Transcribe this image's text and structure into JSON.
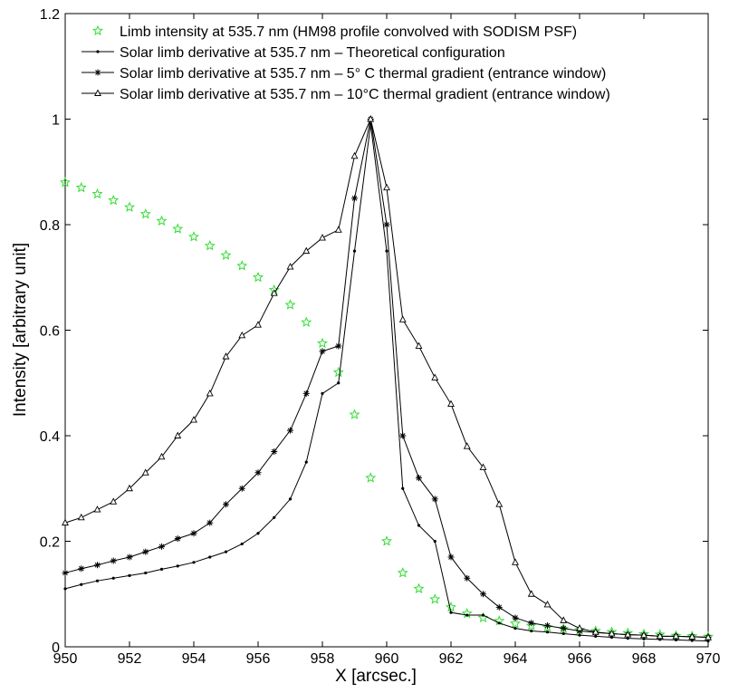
{
  "chart_data": {
    "type": "line",
    "xlabel": "X [arcsec.]",
    "ylabel": "Intensity [arbitrary unit]",
    "x": [
      950,
      950.5,
      951,
      951.5,
      952,
      952.5,
      953,
      953.5,
      954,
      954.5,
      955,
      955.5,
      956,
      956.5,
      957,
      957.5,
      958,
      958.5,
      959,
      959.5,
      960,
      960.5,
      961,
      961.5,
      962,
      962.5,
      963,
      963.5,
      964,
      964.5,
      965,
      965.5,
      966,
      966.5,
      967,
      967.5,
      968,
      968.5,
      969,
      969.5,
      970
    ],
    "xlim": [
      950,
      970
    ],
    "ylim": [
      0,
      1.2
    ],
    "xticks": [
      950,
      952,
      954,
      956,
      958,
      960,
      962,
      964,
      966,
      968,
      970
    ],
    "yticks": [
      0,
      0.2,
      0.4,
      0.6,
      0.8,
      1,
      1.2
    ],
    "grid": false,
    "legend": "upper left",
    "series": [
      {
        "name": "Limb intensity at 535.7 nm (HM98 profile convolved with SODISM PSF)",
        "color": "#33dd33",
        "marker": "star",
        "linestyle": "none",
        "values": [
          0.88,
          0.87,
          0.858,
          0.846,
          0.833,
          0.82,
          0.807,
          0.792,
          0.777,
          0.76,
          0.742,
          0.722,
          0.7,
          0.676,
          0.648,
          0.615,
          0.575,
          0.52,
          0.44,
          0.32,
          0.2,
          0.14,
          0.11,
          0.09,
          0.075,
          0.063,
          0.055,
          0.049,
          0.044,
          0.04,
          0.037,
          0.034,
          0.032,
          0.03,
          0.028,
          0.026,
          0.024,
          0.023,
          0.021,
          0.02,
          0.019
        ]
      },
      {
        "name": "Solar limb derivative at 535.7 nm – Theoretical configuration",
        "color": "#000000",
        "marker": "dot",
        "linestyle": "solid",
        "values": [
          0.11,
          0.118,
          0.125,
          0.13,
          0.135,
          0.14,
          0.147,
          0.153,
          0.16,
          0.17,
          0.18,
          0.195,
          0.215,
          0.245,
          0.28,
          0.35,
          0.48,
          0.5,
          0.75,
          0.99,
          0.75,
          0.3,
          0.23,
          0.2,
          0.065,
          0.06,
          0.06,
          0.045,
          0.035,
          0.03,
          0.028,
          0.025,
          0.022,
          0.02,
          0.018,
          0.016,
          0.015,
          0.014,
          0.013,
          0.012,
          0.011
        ]
      },
      {
        "name": "Solar limb derivative at 535.7 nm – 5° C thermal gradient (entrance window)",
        "color": "#000000",
        "marker": "asterisk",
        "linestyle": "solid",
        "values": [
          0.14,
          0.148,
          0.155,
          0.163,
          0.17,
          0.18,
          0.19,
          0.205,
          0.215,
          0.235,
          0.27,
          0.3,
          0.33,
          0.37,
          0.41,
          0.48,
          0.56,
          0.57,
          0.85,
          1.0,
          0.8,
          0.4,
          0.32,
          0.28,
          0.17,
          0.13,
          0.1,
          0.075,
          0.055,
          0.045,
          0.04,
          0.035,
          0.03,
          0.027,
          0.025,
          0.023,
          0.022,
          0.02,
          0.02,
          0.019,
          0.018
        ]
      },
      {
        "name": "Solar limb derivative at 535.7 nm – 10°C thermal gradient (entrance window)",
        "color": "#000000",
        "marker": "triangle",
        "linestyle": "solid",
        "values": [
          0.235,
          0.245,
          0.26,
          0.275,
          0.3,
          0.33,
          0.36,
          0.4,
          0.43,
          0.48,
          0.55,
          0.59,
          0.61,
          0.67,
          0.72,
          0.75,
          0.775,
          0.79,
          0.93,
          1.0,
          0.87,
          0.62,
          0.57,
          0.51,
          0.46,
          0.38,
          0.34,
          0.27,
          0.16,
          0.1,
          0.08,
          0.05,
          0.035,
          0.028,
          0.025,
          0.023,
          0.022,
          0.02,
          0.02,
          0.019,
          0.018
        ]
      }
    ]
  }
}
